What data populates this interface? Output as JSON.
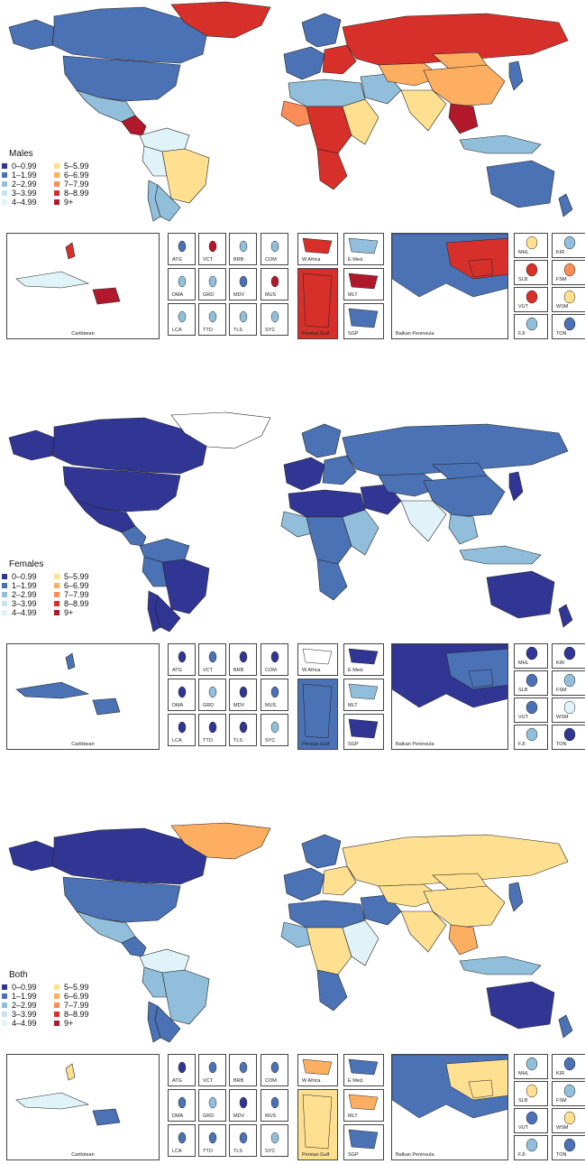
{
  "panels": [
    {
      "title": "Males",
      "colors": {
        "canada": "#4a72b5",
        "usa": "#4a72b5",
        "alaska": "#4a72b5",
        "greenland": "#d7302a",
        "mexico": "#91bfdb",
        "central_america": "#b2182b",
        "south_america_north": "#e0f3f8",
        "brazil": "#fee090",
        "peru": "#e0f3f8",
        "argentina": "#91bfdb",
        "chile": "#91bfdb",
        "west_europe": "#4a72b5",
        "scandinavia": "#4a72b5",
        "east_europe": "#d7302a",
        "russia": "#d7302a",
        "north_africa": "#91bfdb",
        "west_africa": "#fc8d59",
        "central_africa": "#d7302a",
        "east_africa": "#fee090",
        "south_africa": "#d7302a",
        "middle_east": "#91bfdb",
        "central_asia": "#fdae61",
        "india": "#fee090",
        "china": "#fdae61",
        "se_asia": "#b2182b",
        "indonesia": "#91bfdb",
        "australia": "#4a72b5",
        "nz": "#4a72b5",
        "japan": "#4a72b5",
        "mongolia": "#fdae61"
      }
    },
    {
      "title": "Females",
      "colors": {
        "canada": "#313695",
        "usa": "#313695",
        "alaska": "#313695",
        "greenland": "#ffffff",
        "mexico": "#313695",
        "central_america": "#4a72b5",
        "south_america_north": "#4a72b5",
        "brazil": "#313695",
        "peru": "#4a72b5",
        "argentina": "#313695",
        "chile": "#313695",
        "west_europe": "#313695",
        "scandinavia": "#4a72b5",
        "east_europe": "#4a72b5",
        "russia": "#4a72b5",
        "north_africa": "#313695",
        "west_africa": "#91bfdb",
        "central_africa": "#4a72b5",
        "east_africa": "#91bfdb",
        "south_africa": "#4a72b5",
        "middle_east": "#313695",
        "central_asia": "#4a72b5",
        "india": "#e0f3f8",
        "china": "#4a72b5",
        "se_asia": "#91bfdb",
        "indonesia": "#91bfdb",
        "australia": "#313695",
        "nz": "#313695",
        "japan": "#313695",
        "mongolia": "#4a72b5"
      }
    },
    {
      "title": "Both",
      "colors": {
        "canada": "#313695",
        "usa": "#4a72b5",
        "alaska": "#313695",
        "greenland": "#fdae61",
        "mexico": "#91bfdb",
        "central_america": "#4a72b5",
        "south_america_north": "#e0f3f8",
        "brazil": "#91bfdb",
        "peru": "#91bfdb",
        "argentina": "#4a72b5",
        "chile": "#4a72b5",
        "west_europe": "#4a72b5",
        "scandinavia": "#4a72b5",
        "east_europe": "#fee090",
        "russia": "#fee090",
        "north_africa": "#4a72b5",
        "west_africa": "#91bfdb",
        "central_africa": "#fee090",
        "east_africa": "#e0f3f8",
        "south_africa": "#4a72b5",
        "middle_east": "#4a72b5",
        "central_asia": "#fee090",
        "india": "#fee090",
        "china": "#fee090",
        "se_asia": "#fdae61",
        "indonesia": "#91bfdb",
        "australia": "#313695",
        "nz": "#4a72b5",
        "japan": "#4a72b5",
        "mongolia": "#fee090"
      }
    }
  ],
  "legend": {
    "items": [
      {
        "label": "0–0.99",
        "color": "#313695"
      },
      {
        "label": "5–5.99",
        "color": "#fee090"
      },
      {
        "label": "1–1.99",
        "color": "#4a72b5"
      },
      {
        "label": "6–6.99",
        "color": "#fdae61"
      },
      {
        "label": "2–2.99",
        "color": "#91bfdb"
      },
      {
        "label": "7–7.99",
        "color": "#fc8d59"
      },
      {
        "label": "3–3.99",
        "color": "#c6e4ef"
      },
      {
        "label": "8–8.99",
        "color": "#d7302a"
      },
      {
        "label": "4–4.99",
        "color": "#e0f3f8"
      },
      {
        "label": "9+",
        "color": "#b2182b"
      }
    ]
  },
  "insets": {
    "caribbean": "Caribbean",
    "small_states": [
      "ATG",
      "VCT",
      "BRB",
      "COM",
      "DMA",
      "GRD",
      "MDV",
      "MUS",
      "LCA",
      "TTO",
      "TLS",
      "SYC"
    ],
    "regions": [
      "W Africa",
      "E Med.",
      "Persian Gulf",
      "MLT",
      "SGP"
    ],
    "balkan": "Balkan Peninsula",
    "pacific": [
      "MHL",
      "KIR",
      "SLB",
      "FSM",
      "VUT",
      "WSM",
      "FJI",
      "TON"
    ]
  }
}
